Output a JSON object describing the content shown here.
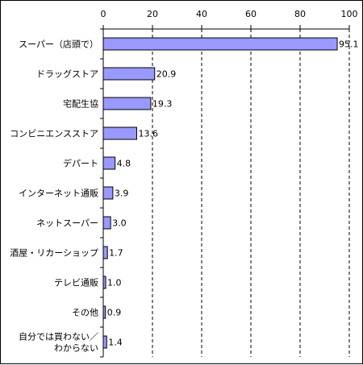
{
  "chart_data": {
    "type": "bar",
    "orientation": "horizontal",
    "categories": [
      "スーパー（店頭で）",
      "ドラッグストア",
      "宅配生協",
      "コンビニエンスストア",
      "デパート",
      "インターネット通販",
      "ネットスーパー",
      "酒屋・リカーショップ",
      "テレビ通販",
      "その他",
      [
        "自分では買わない／",
        "わからない"
      ]
    ],
    "values": [
      95.1,
      20.9,
      19.3,
      13.6,
      4.8,
      3.9,
      3.0,
      1.7,
      1.0,
      0.9,
      1.4
    ],
    "value_labels": [
      "95.1",
      "20.9",
      "19.3",
      "13.6",
      "4.8",
      "3.9",
      "3.0",
      "1.7",
      "1.0",
      "0.9",
      "1.4"
    ],
    "xlim": [
      0,
      100
    ],
    "xticks": [
      0,
      20,
      40,
      60,
      80,
      100
    ],
    "grid": "dashed vertical",
    "title": "",
    "xlabel": "",
    "ylabel": "",
    "bar_color": "#9999ff",
    "bar_edge_color": "#000000"
  }
}
